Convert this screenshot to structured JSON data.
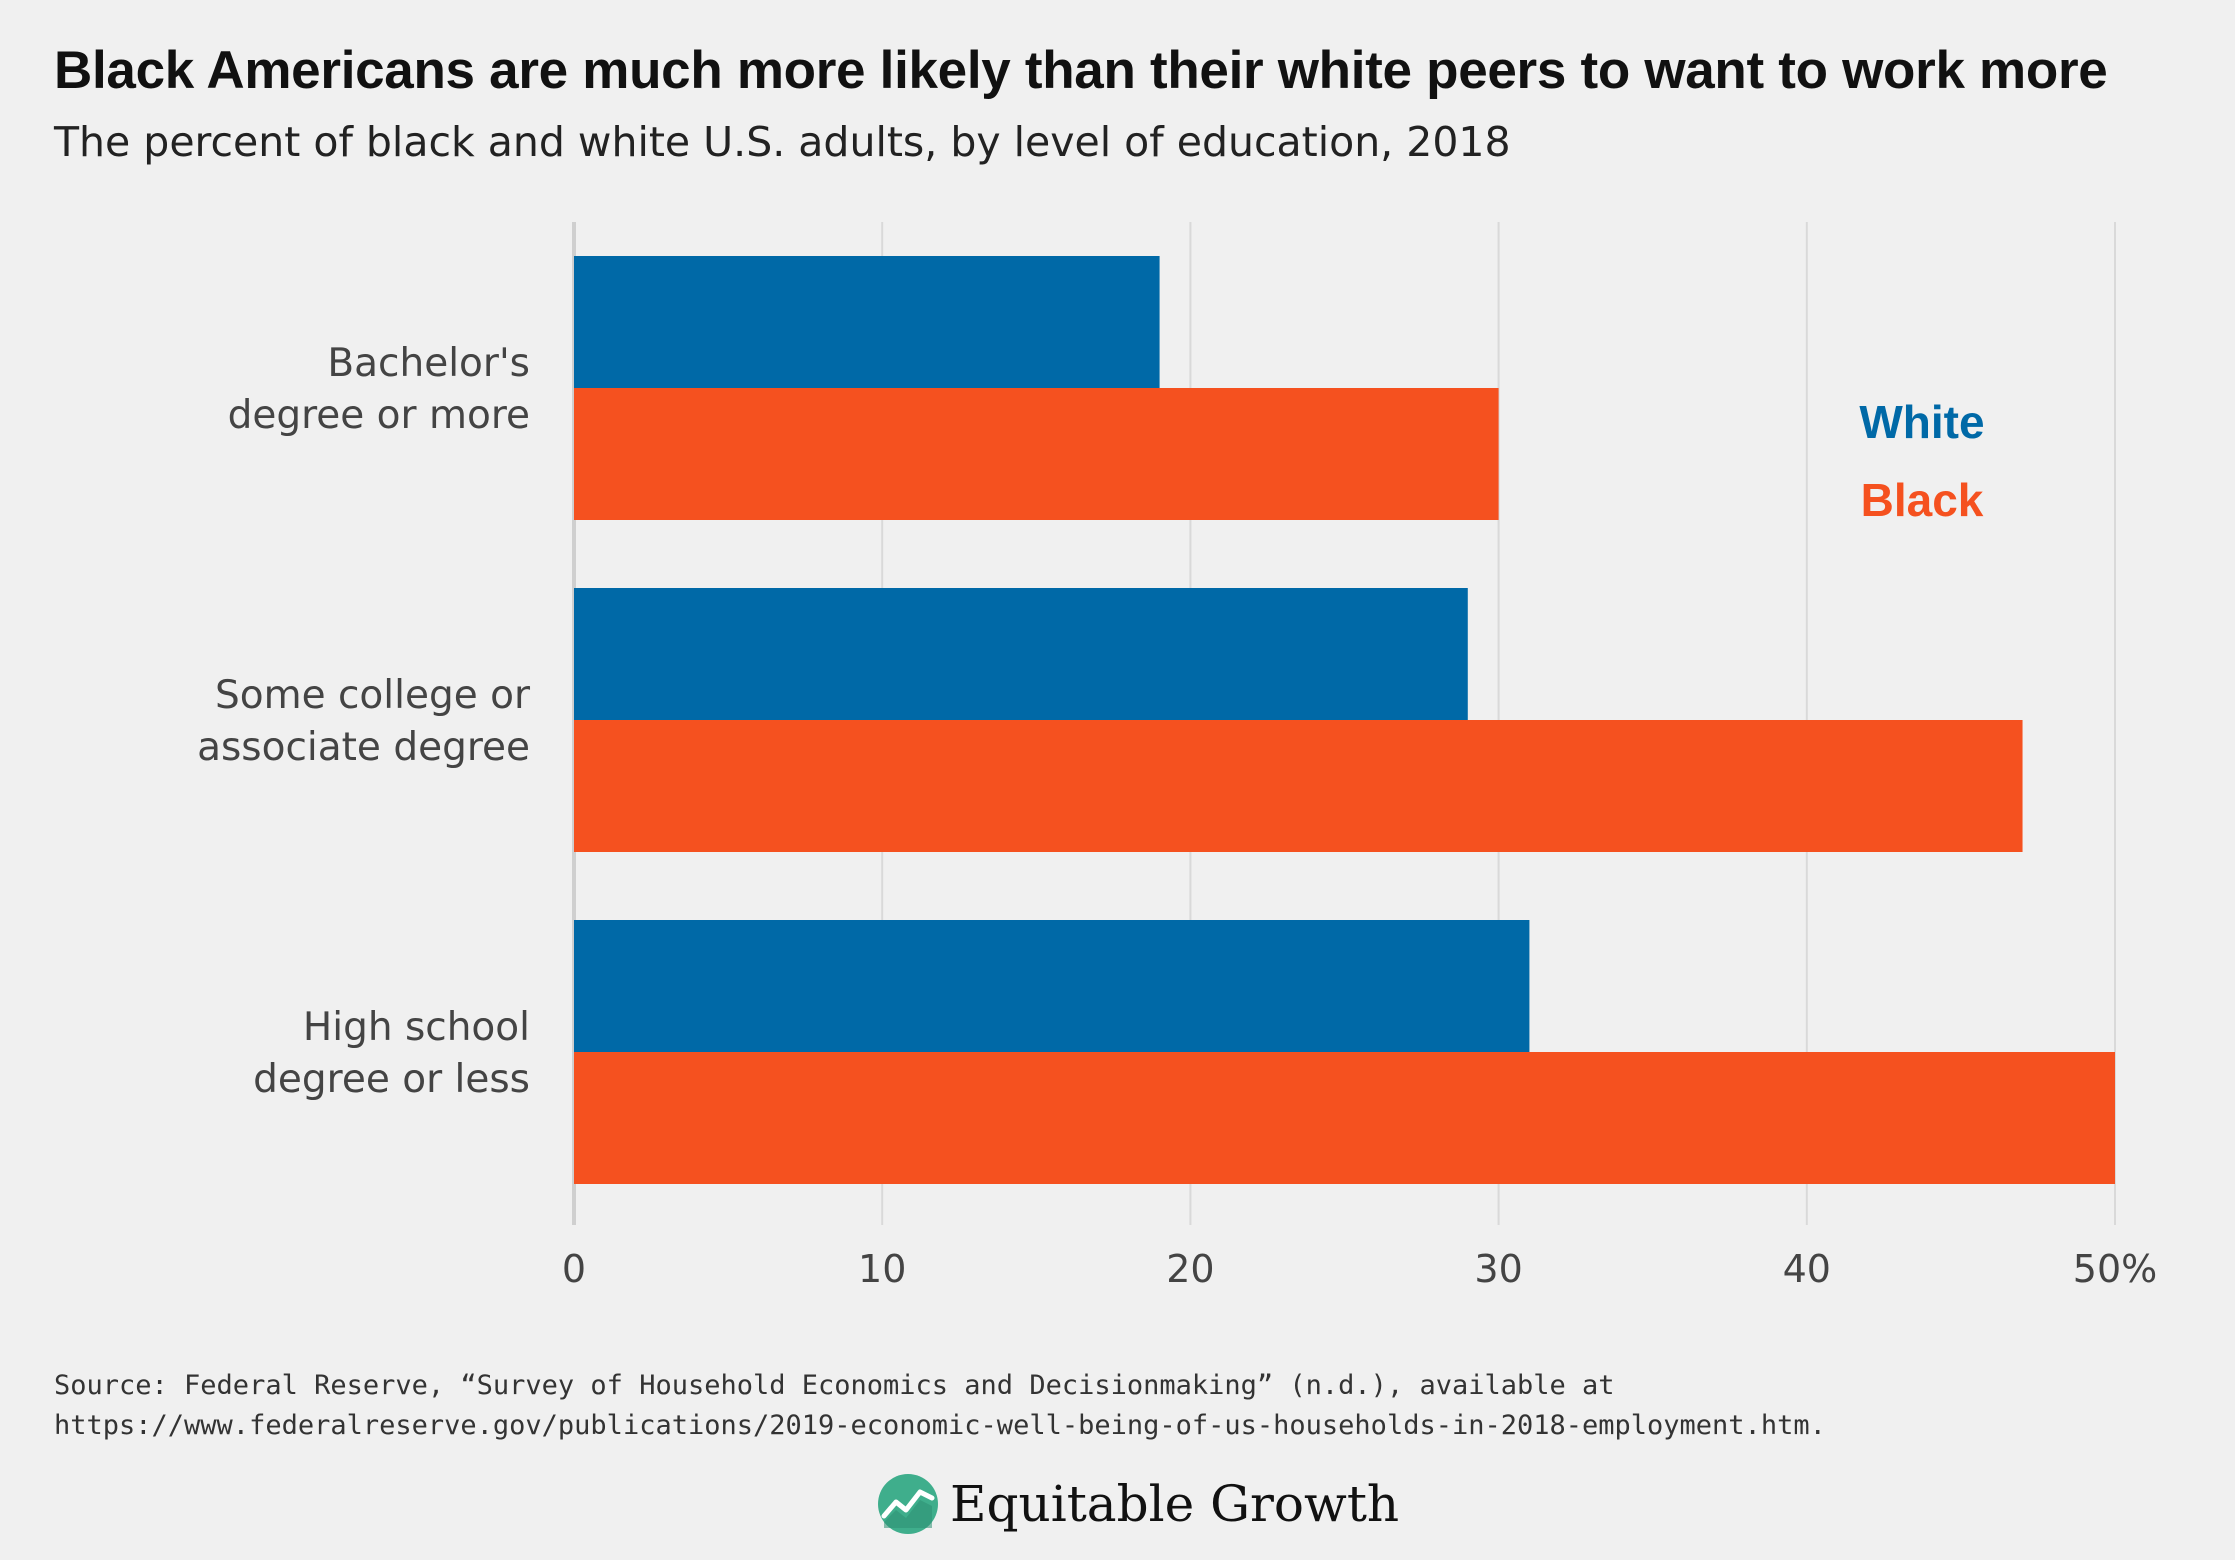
{
  "header": {
    "title": "Black Americans are much more likely than their white peers to want to work more",
    "subtitle": "The percent of black and white U.S. adults, by level of education, 2018"
  },
  "chart_data": {
    "type": "bar",
    "orientation": "horizontal",
    "categories": [
      [
        "Bachelor's",
        "degree or more"
      ],
      [
        "Some college or",
        "associate degree"
      ],
      [
        "High school",
        "degree or less"
      ]
    ],
    "series": [
      {
        "name": "White",
        "color": "#0069a7",
        "values": [
          19,
          29,
          31
        ]
      },
      {
        "name": "Black",
        "color": "#f5511f",
        "values": [
          30,
          47,
          50
        ]
      }
    ],
    "xlim": [
      0,
      50
    ],
    "xticks": [
      0,
      10,
      20,
      30,
      40,
      50
    ],
    "xtick_labels": [
      "0",
      "10",
      "20",
      "30",
      "40",
      "50%"
    ],
    "grid": true,
    "legend": "right, inside plot"
  },
  "footer": {
    "source_line1": "Source: Federal Reserve, “Survey of Household Economics and Decisionmaking” (n.d.), available at",
    "source_line2": "https://www.federalreserve.gov/publications/2019-economic-well-being-of-us-households-in-2018-employment.htm.",
    "logo_text": "Equitable Growth",
    "logo_icon": "trend-line-icon",
    "logo_color": "#3fae8c"
  }
}
